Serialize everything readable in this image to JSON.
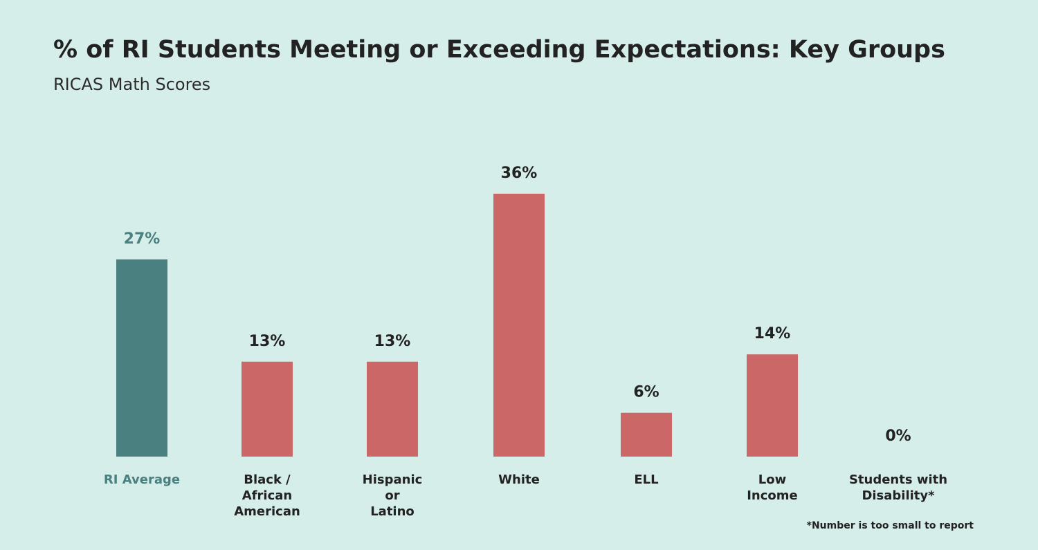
{
  "title": "% of RI Students Meeting or Exceeding Expectations: Key Groups",
  "subtitle": "RICAS Math Scores",
  "footnote": "*Number is too small to report",
  "colors": {
    "background": "#d6eeea",
    "average_bar": "#4a807f",
    "group_bar": "#cb6867",
    "text": "#222222"
  },
  "chart_data": {
    "type": "bar",
    "categories": [
      "RI Average",
      "Black / African American",
      "Hispanic or Latino",
      "White",
      "ELL",
      "Low Income",
      "Students with Disability*"
    ],
    "category_label_lines": [
      [
        "RI Average"
      ],
      [
        "Black /",
        "African",
        "American"
      ],
      [
        "Hispanic",
        "or",
        "Latino"
      ],
      [
        "White"
      ],
      [
        "ELL"
      ],
      [
        "Low",
        "Income"
      ],
      [
        "Students with",
        "Disability*"
      ]
    ],
    "values": [
      27,
      13,
      13,
      36,
      6,
      14,
      0
    ],
    "value_labels": [
      "27%",
      "13%",
      "13%",
      "36%",
      "6%",
      "14%",
      "0%"
    ],
    "highlight_index": 0,
    "ylim": [
      0,
      36
    ],
    "xlabel": "",
    "ylabel": "",
    "grid": false,
    "legend": "none"
  }
}
